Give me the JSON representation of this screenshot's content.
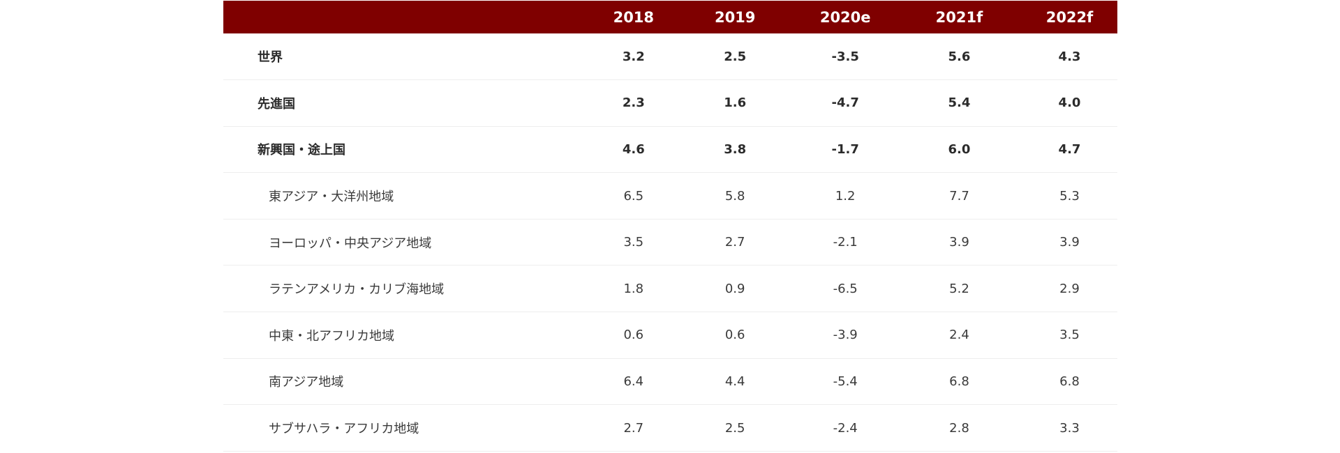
{
  "colors": {
    "header_bg": "#7f0000",
    "header_text": "#ffffff",
    "row_border": "#eeeeee"
  },
  "table": {
    "columns": [
      "",
      "2018",
      "2019",
      "2020e",
      "2021f",
      "2022f"
    ],
    "rows": [
      {
        "region": "世界",
        "values": [
          "3.2",
          "2.5",
          "-3.5",
          "5.6",
          "4.3"
        ],
        "level": "major"
      },
      {
        "region": "先進国",
        "values": [
          "2.3",
          "1.6",
          "-4.7",
          "5.4",
          "4.0"
        ],
        "level": "major"
      },
      {
        "region": "新興国・途上国",
        "values": [
          "4.6",
          "3.8",
          "-1.7",
          "6.0",
          "4.7"
        ],
        "level": "major"
      },
      {
        "region": "東アジア・大洋州地域",
        "values": [
          "6.5",
          "5.8",
          "1.2",
          "7.7",
          "5.3"
        ],
        "level": "sub"
      },
      {
        "region": "ヨーロッパ・中央アジア地域",
        "values": [
          "3.5",
          "2.7",
          "-2.1",
          "3.9",
          "3.9"
        ],
        "level": "sub"
      },
      {
        "region": "ラテンアメリカ・カリブ海地域",
        "values": [
          "1.8",
          "0.9",
          "-6.5",
          "5.2",
          "2.9"
        ],
        "level": "sub"
      },
      {
        "region": "中東・北アフリカ地域",
        "values": [
          "0.6",
          "0.6",
          "-3.9",
          "2.4",
          "3.5"
        ],
        "level": "sub"
      },
      {
        "region": "南アジア地域",
        "values": [
          "6.4",
          "4.4",
          "-5.4",
          "6.8",
          "6.8"
        ],
        "level": "sub"
      },
      {
        "region": "サブサハラ・アフリカ地域",
        "values": [
          "2.7",
          "2.5",
          "-2.4",
          "2.8",
          "3.3"
        ],
        "level": "sub"
      }
    ]
  }
}
